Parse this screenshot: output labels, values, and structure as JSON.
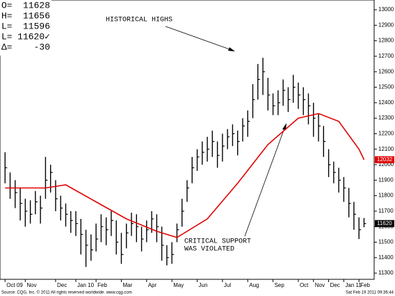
{
  "chart_data": {
    "type": "ohlc",
    "quote": [
      {
        "label": "O=",
        "value": 11628
      },
      {
        "label": "H=",
        "value": 11656
      },
      {
        "label": "L=",
        "value": 11596
      },
      {
        "label": "L=",
        "value": "11620✓"
      },
      {
        "label": "Δ=",
        "value": -30
      }
    ],
    "annotations": [
      "HISTORICAL HIGHS",
      "CRITICAL SUPPORT",
      "WAS VIOLATED"
    ],
    "bars": {
      "color": "#000000",
      "high": [
        12080,
        11950,
        11900,
        11850,
        11780,
        11770,
        11830,
        11800,
        12050,
        12000,
        11900,
        11800,
        11750,
        11700,
        11700,
        11650,
        11580,
        11550,
        11620,
        11680,
        11660,
        11700,
        11640,
        11560,
        11620,
        11690,
        11680,
        11600,
        11640,
        11700,
        11680,
        11600,
        11480,
        11500,
        11620,
        11780,
        11900,
        12050,
        12100,
        12150,
        12180,
        12220,
        12150,
        12200,
        12230,
        12260,
        12220,
        12300,
        12350,
        12520,
        12650,
        12690,
        12560,
        12460,
        12480,
        12550,
        12500,
        12580,
        12530,
        12500,
        12460,
        12400,
        12330,
        12250,
        12100,
        12020,
        11980,
        11920,
        11850,
        11760,
        11660,
        11656
      ],
      "low": [
        11880,
        11780,
        11720,
        11640,
        11600,
        11620,
        11680,
        11620,
        11780,
        11820,
        11700,
        11640,
        11600,
        11560,
        11540,
        11420,
        11340,
        11380,
        11440,
        11500,
        11480,
        11540,
        11420,
        11360,
        11460,
        11540,
        11500,
        11440,
        11500,
        11560,
        11500,
        11380,
        11350,
        11360,
        11500,
        11600,
        11760,
        11880,
        11960,
        12000,
        12020,
        12050,
        11980,
        12020,
        12100,
        12120,
        12060,
        12150,
        12180,
        12300,
        12420,
        12450,
        12350,
        12320,
        12320,
        12380,
        12340,
        12400,
        12360,
        12320,
        12260,
        12180,
        12150,
        12050,
        11920,
        11880,
        11820,
        11760,
        11660,
        11580,
        11520,
        11596
      ],
      "close": [
        11980,
        11850,
        11820,
        11750,
        11700,
        11680,
        11760,
        11720,
        11900,
        11950,
        11780,
        11720,
        11680,
        11640,
        11620,
        11550,
        11480,
        11450,
        11520,
        11600,
        11580,
        11640,
        11500,
        11420,
        11560,
        11620,
        11600,
        11520,
        11580,
        11650,
        11600,
        11480,
        11400,
        11420,
        11580,
        11700,
        11850,
        11980,
        12050,
        12080,
        12100,
        12150,
        12060,
        12120,
        12180,
        12200,
        12150,
        12250,
        12280,
        12420,
        12550,
        12600,
        12450,
        12380,
        12400,
        12480,
        12420,
        12500,
        12450,
        12420,
        12380,
        12300,
        12250,
        12150,
        12000,
        11950,
        11900,
        11850,
        11750,
        11680,
        11580,
        11620
      ]
    },
    "ma": {
      "color": "#e00000",
      "x": [
        0,
        8,
        12,
        18,
        24,
        30,
        34,
        40,
        46,
        52,
        58,
        62,
        66,
        70,
        71
      ],
      "values": [
        11850,
        11850,
        11870,
        11760,
        11650,
        11570,
        11530,
        11650,
        11880,
        12130,
        12300,
        12330,
        12280,
        12100,
        12032
      ]
    },
    "price_tags": [
      {
        "value": 12032,
        "color": "#e00000"
      },
      {
        "value": 11620,
        "color": "#000000"
      }
    ],
    "xlim": [
      -1,
      73
    ],
    "ylim": [
      11260,
      13063
    ],
    "xticks": [
      {
        "value": 0,
        "label": "Oct 09"
      },
      {
        "value": 4,
        "label": "Nov"
      },
      {
        "value": 10,
        "label": "Dec"
      },
      {
        "value": 14,
        "label": "Jan 10"
      },
      {
        "value": 18,
        "label": "Feb"
      },
      {
        "value": 23,
        "label": "Mar"
      },
      {
        "value": 28,
        "label": "Apr"
      },
      {
        "value": 33,
        "label": "May"
      },
      {
        "value": 38,
        "label": "Jun"
      },
      {
        "value": 43,
        "label": "Jul"
      },
      {
        "value": 48,
        "label": "Aug"
      },
      {
        "value": 53,
        "label": "Sep"
      },
      {
        "value": 58,
        "label": "Oct"
      },
      {
        "value": 61,
        "label": "Nov"
      },
      {
        "value": 64,
        "label": "Dec"
      },
      {
        "value": 67,
        "label": "Jan 11"
      },
      {
        "value": 70,
        "label": "Feb"
      }
    ],
    "yticks": [
      11300,
      11400,
      11500,
      11600,
      11700,
      11800,
      11900,
      12000,
      12100,
      12200,
      12300,
      12400,
      12500,
      12600,
      12700,
      12800,
      12900,
      13000
    ],
    "footer": {
      "source": "Source: CQG, Inc. © 2011 All rights reserved worldwide. www.cqg.com",
      "timestamp": "Sat Feb 19 2011 09:36:44"
    }
  }
}
